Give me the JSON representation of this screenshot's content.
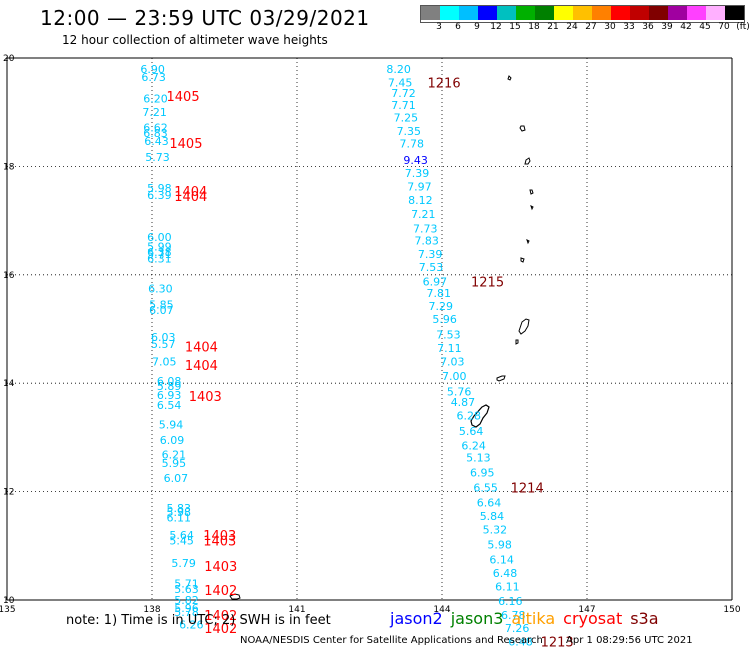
{
  "header": {
    "title": "12:00 — 23:59 UTC 03/29/2021",
    "subtitle": "12 hour collection of altimeter wave heights"
  },
  "scale": {
    "colors": [
      "#808080",
      "#00ffff",
      "#00bfff",
      "#0000ff",
      "#00c0c0",
      "#00b000",
      "#008000",
      "#ffff00",
      "#ffc000",
      "#ff8000",
      "#ff0000",
      "#c00000",
      "#800000",
      "#a000a0",
      "#ff40ff",
      "#ffb0ff",
      "#000000"
    ],
    "labels": [
      "3",
      "6",
      "9",
      "12",
      "15",
      "18",
      "21",
      "24",
      "27",
      "30",
      "33",
      "36",
      "39",
      "42",
      "45",
      "70",
      "(ft)"
    ]
  },
  "axes": {
    "lon_labels": [
      "135",
      "138",
      "141",
      "144",
      "147",
      "150"
    ],
    "lat_labels": [
      "10",
      "12",
      "14",
      "16",
      "18",
      "20"
    ]
  },
  "tracks": [
    {
      "color": "#00c8ff",
      "points": [
        {
          "lon": 137.76,
          "lat": 19.8,
          "v": "6.90"
        },
        {
          "lon": 137.78,
          "lat": 19.65,
          "v": "6.73"
        },
        {
          "lon": 137.82,
          "lat": 19.25,
          "v": "6.20"
        },
        {
          "lon": 137.8,
          "lat": 19.0,
          "v": "7.21"
        },
        {
          "lon": 137.82,
          "lat": 18.72,
          "v": "6.62"
        },
        {
          "lon": 137.82,
          "lat": 18.62,
          "v": "6.83"
        },
        {
          "lon": 137.84,
          "lat": 18.47,
          "v": "6.43"
        },
        {
          "lon": 137.86,
          "lat": 18.17,
          "v": "5.73"
        },
        {
          "lon": 137.9,
          "lat": 17.6,
          "v": "5.98"
        },
        {
          "lon": 137.9,
          "lat": 17.47,
          "v": "6.39"
        },
        {
          "lon": 137.9,
          "lat": 16.7,
          "v": "6.00"
        },
        {
          "lon": 137.9,
          "lat": 16.52,
          "v": "5.99"
        },
        {
          "lon": 137.9,
          "lat": 16.42,
          "v": "6.38"
        },
        {
          "lon": 137.9,
          "lat": 16.38,
          "v": "5.71"
        },
        {
          "lon": 137.9,
          "lat": 16.3,
          "v": "6.31"
        },
        {
          "lon": 137.92,
          "lat": 15.75,
          "v": "6.30"
        },
        {
          "lon": 137.94,
          "lat": 15.45,
          "v": "5.85"
        },
        {
          "lon": 137.94,
          "lat": 15.35,
          "v": "6.07"
        },
        {
          "lon": 137.98,
          "lat": 14.85,
          "v": "6.03"
        },
        {
          "lon": 137.98,
          "lat": 14.72,
          "v": "5.57"
        },
        {
          "lon": 138.0,
          "lat": 14.4,
          "v": "7.05"
        },
        {
          "lon": 138.1,
          "lat": 14.04,
          "v": "6.08"
        },
        {
          "lon": 138.1,
          "lat": 13.95,
          "v": "5.89"
        },
        {
          "lon": 138.1,
          "lat": 13.78,
          "v": "6.93"
        },
        {
          "lon": 138.1,
          "lat": 13.6,
          "v": "6.54"
        },
        {
          "lon": 138.14,
          "lat": 13.24,
          "v": "5.94"
        },
        {
          "lon": 138.16,
          "lat": 12.95,
          "v": "6.09"
        },
        {
          "lon": 138.2,
          "lat": 12.68,
          "v": "6.21"
        },
        {
          "lon": 138.2,
          "lat": 12.53,
          "v": "5.95"
        },
        {
          "lon": 138.24,
          "lat": 12.25,
          "v": "6.07"
        },
        {
          "lon": 138.3,
          "lat": 11.7,
          "v": "5.83"
        },
        {
          "lon": 138.3,
          "lat": 11.62,
          "v": "5.98"
        },
        {
          "lon": 138.3,
          "lat": 11.52,
          "v": "6.11"
        },
        {
          "lon": 138.36,
          "lat": 11.2,
          "v": "5.64"
        },
        {
          "lon": 138.36,
          "lat": 11.1,
          "v": "5.45"
        },
        {
          "lon": 138.4,
          "lat": 10.68,
          "v": "5.79"
        },
        {
          "lon": 138.46,
          "lat": 10.3,
          "v": "5.71"
        },
        {
          "lon": 138.46,
          "lat": 10.2,
          "v": "5.63"
        },
        {
          "lon": 138.46,
          "lat": 10.0,
          "v": "5.82"
        },
        {
          "lon": 138.46,
          "lat": 9.85,
          "v": "5.96"
        },
        {
          "lon": 138.46,
          "lat": 9.78,
          "v": "5.78"
        },
        {
          "lon": 138.56,
          "lat": 9.55,
          "v": "6.26"
        }
      ],
      "times": [
        {
          "lon": 138.3,
          "lat": 19.3,
          "v": "1405",
          "color": "#ff0000"
        },
        {
          "lon": 138.36,
          "lat": 18.43,
          "v": "1405",
          "color": "#ff0000"
        },
        {
          "lon": 138.46,
          "lat": 17.55,
          "v": "1404",
          "color": "#ff0000"
        },
        {
          "lon": 138.46,
          "lat": 17.45,
          "v": "1404",
          "color": "#ff0000"
        },
        {
          "lon": 138.68,
          "lat": 14.68,
          "v": "1404",
          "color": "#ff0000"
        },
        {
          "lon": 138.68,
          "lat": 14.34,
          "v": "1404",
          "color": "#ff0000"
        },
        {
          "lon": 138.76,
          "lat": 13.76,
          "v": "1403",
          "color": "#ff0000"
        },
        {
          "lon": 139.06,
          "lat": 11.2,
          "v": "1403",
          "color": "#ff0000"
        },
        {
          "lon": 139.06,
          "lat": 11.1,
          "v": "1403",
          "color": "#ff0000"
        },
        {
          "lon": 139.08,
          "lat": 10.63,
          "v": "1403",
          "color": "#ff0000"
        },
        {
          "lon": 139.08,
          "lat": 10.18,
          "v": "1402",
          "color": "#ff0000"
        },
        {
          "lon": 139.08,
          "lat": 9.72,
          "v": "1402",
          "color": "#ff0000"
        },
        {
          "lon": 139.08,
          "lat": 9.48,
          "v": "1402",
          "color": "#ff0000"
        }
      ]
    },
    {
      "color": "#00c8ff",
      "points": [
        {
          "lon": 142.85,
          "lat": 19.8,
          "v": "8.20"
        },
        {
          "lon": 142.88,
          "lat": 19.55,
          "v": "7.45"
        },
        {
          "lon": 142.95,
          "lat": 19.35,
          "v": "7.72"
        },
        {
          "lon": 142.95,
          "lat": 19.13,
          "v": "7.71"
        },
        {
          "lon": 143.0,
          "lat": 18.9,
          "v": "7.25"
        },
        {
          "lon": 143.06,
          "lat": 18.65,
          "v": "7.35"
        },
        {
          "lon": 143.12,
          "lat": 18.42,
          "v": "7.78"
        },
        {
          "lon": 143.2,
          "lat": 18.12,
          "v": "9.43",
          "color": "#0000ff"
        },
        {
          "lon": 143.23,
          "lat": 17.88,
          "v": "7.39"
        },
        {
          "lon": 143.28,
          "lat": 17.63,
          "v": "7.97"
        },
        {
          "lon": 143.3,
          "lat": 17.38,
          "v": "8.12"
        },
        {
          "lon": 143.36,
          "lat": 17.12,
          "v": "7.21"
        },
        {
          "lon": 143.4,
          "lat": 16.85,
          "v": "7.73"
        },
        {
          "lon": 143.43,
          "lat": 16.63,
          "v": "7.83"
        },
        {
          "lon": 143.5,
          "lat": 16.38,
          "v": "7.39"
        },
        {
          "lon": 143.52,
          "lat": 16.14,
          "v": "7.53"
        },
        {
          "lon": 143.6,
          "lat": 15.88,
          "v": "6.97"
        },
        {
          "lon": 143.68,
          "lat": 15.66,
          "v": "7.81"
        },
        {
          "lon": 143.72,
          "lat": 15.42,
          "v": "7.29"
        },
        {
          "lon": 143.8,
          "lat": 15.18,
          "v": "5.96"
        },
        {
          "lon": 143.88,
          "lat": 14.9,
          "v": "7.53"
        },
        {
          "lon": 143.9,
          "lat": 14.65,
          "v": "7.11"
        },
        {
          "lon": 143.96,
          "lat": 14.4,
          "v": "7.03"
        },
        {
          "lon": 144.0,
          "lat": 14.13,
          "v": "7.00"
        },
        {
          "lon": 144.1,
          "lat": 13.85,
          "v": "5.76"
        },
        {
          "lon": 144.18,
          "lat": 13.65,
          "v": "4.87"
        },
        {
          "lon": 144.3,
          "lat": 13.4,
          "v": "6.28"
        },
        {
          "lon": 144.35,
          "lat": 13.12,
          "v": "5.64"
        },
        {
          "lon": 144.4,
          "lat": 12.85,
          "v": "6.24"
        },
        {
          "lon": 144.5,
          "lat": 12.63,
          "v": "5.13"
        },
        {
          "lon": 144.58,
          "lat": 12.35,
          "v": "6.95"
        },
        {
          "lon": 144.65,
          "lat": 12.08,
          "v": "6.55"
        },
        {
          "lon": 144.72,
          "lat": 11.8,
          "v": "6.64"
        },
        {
          "lon": 144.78,
          "lat": 11.55,
          "v": "5.84"
        },
        {
          "lon": 144.84,
          "lat": 11.3,
          "v": "5.32"
        },
        {
          "lon": 144.94,
          "lat": 11.02,
          "v": "5.98"
        },
        {
          "lon": 144.98,
          "lat": 10.75,
          "v": "6.14"
        },
        {
          "lon": 145.05,
          "lat": 10.5,
          "v": "6.48"
        },
        {
          "lon": 145.1,
          "lat": 10.25,
          "v": "6.11"
        },
        {
          "lon": 145.16,
          "lat": 9.98,
          "v": "6.16"
        },
        {
          "lon": 145.22,
          "lat": 9.72,
          "v": "6.78"
        },
        {
          "lon": 145.3,
          "lat": 9.48,
          "v": "7.26"
        },
        {
          "lon": 145.37,
          "lat": 9.23,
          "v": "6.48"
        }
      ],
      "times": [
        {
          "lon": 143.7,
          "lat": 19.55,
          "v": "1216",
          "color": "#800000"
        },
        {
          "lon": 144.6,
          "lat": 15.88,
          "v": "1215",
          "color": "#800000"
        },
        {
          "lon": 145.42,
          "lat": 12.08,
          "v": "1214",
          "color": "#800000"
        },
        {
          "lon": 146.04,
          "lat": 9.23,
          "v": "1213",
          "color": "#800000"
        }
      ]
    }
  ],
  "footer": {
    "note": "note: 1) Time is in UTC; 2) SWH is in feet",
    "legend": [
      {
        "label": "jason2",
        "color": "#0000ff"
      },
      {
        "label": "jason3",
        "color": "#008000"
      },
      {
        "label": "altika",
        "color": "#ffa000"
      },
      {
        "label": "cryosat",
        "color": "#ff0000"
      },
      {
        "label": "s3a",
        "color": "#800000"
      }
    ],
    "credit": "NOAA/NESDIS Center for Satellite Applications and Research",
    "timestamp": "Apr  1 08:29:56 UTC 2021"
  }
}
